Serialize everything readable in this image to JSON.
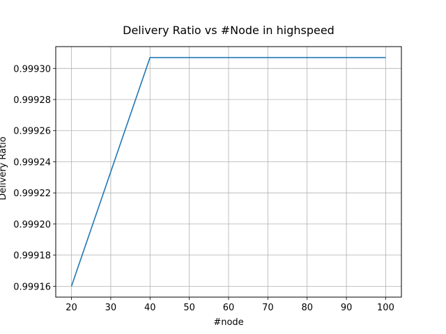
{
  "chart_data": {
    "type": "line",
    "title": "Delivery Ratio vs #Node in highspeed",
    "xlabel": "#node",
    "ylabel": "Delivery Ratio",
    "x": [
      20,
      40,
      60,
      80,
      100
    ],
    "series": [
      {
        "values": [
          0.99916,
          0.999307,
          0.999307,
          0.999307,
          0.999307
        ],
        "color": "#1f77b4"
      }
    ],
    "xlim": [
      16,
      104
    ],
    "ylim": [
      0.999153,
      0.999314
    ],
    "xticks": [
      20,
      30,
      40,
      50,
      60,
      70,
      80,
      90,
      100
    ],
    "xtick_labels": [
      "20",
      "30",
      "40",
      "50",
      "60",
      "70",
      "80",
      "90",
      "100"
    ],
    "yticks": [
      0.99916,
      0.99918,
      0.9992,
      0.99922,
      0.99924,
      0.99926,
      0.99928,
      0.9993
    ],
    "ytick_labels": [
      "0.99916",
      "0.99918",
      "0.99920",
      "0.99922",
      "0.99924",
      "0.99926",
      "0.99928",
      "0.99930"
    ],
    "grid": true,
    "grid_color": "#b0b0b0"
  }
}
